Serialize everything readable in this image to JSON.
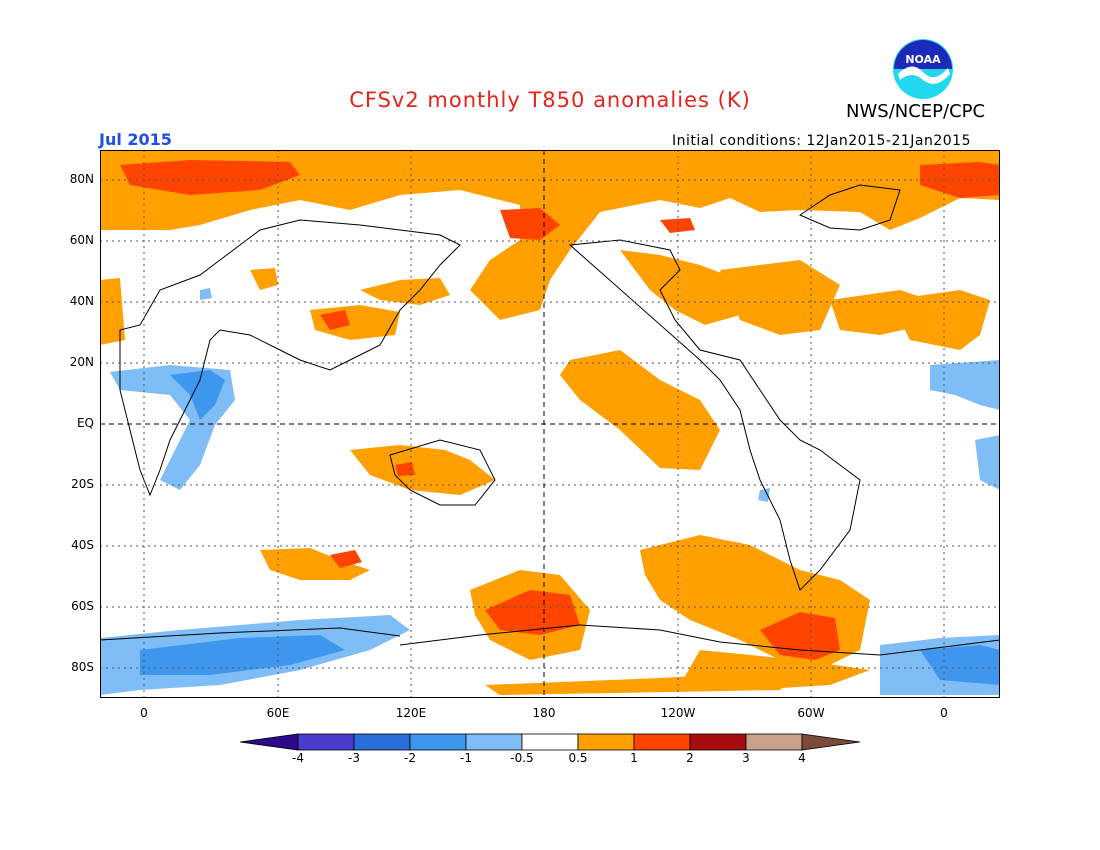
{
  "header": {
    "title": "CFSv2 monthly T850 anomalies (K)",
    "organization": "NWS/NCEP/CPC",
    "logo_text": "NOAA",
    "target_month": "Jul 2015",
    "initial_conditions": "Initial conditions: 12Jan2015-21Jan2015"
  },
  "colors": {
    "title": "#e8231b",
    "target_month": "#1f4fe6",
    "frame": "#000000",
    "coast": "#000000"
  },
  "map": {
    "y_ticks": [
      "80N",
      "60N",
      "40N",
      "20N",
      "EQ",
      "20S",
      "40S",
      "60S",
      "80S"
    ],
    "x_ticks": [
      "0",
      "60E",
      "120E",
      "180",
      "120W",
      "60W",
      "0"
    ],
    "reference_lines": [
      "EQ",
      "180"
    ],
    "grid": "dotted"
  },
  "colorbar": {
    "labels": [
      "-4",
      "-3",
      "-2",
      "-1",
      "-0.5",
      "0.5",
      "1",
      "2",
      "3",
      "4"
    ],
    "colors": [
      "#2d0a8c",
      "#4b3bce",
      "#2a6fd9",
      "#3f96ee",
      "#7fbdf6",
      "#ffffff",
      "#ffa000",
      "#ff4400",
      "#a80d0d",
      "#caa08a",
      "#7a4a3a"
    ]
  }
}
